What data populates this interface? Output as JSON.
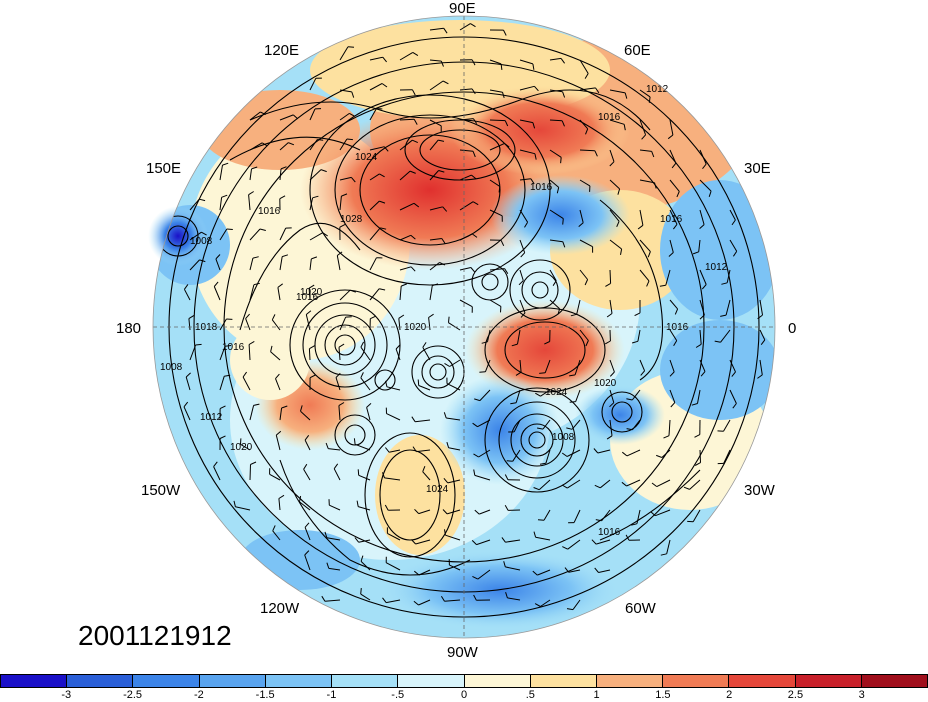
{
  "map": {
    "projection": "north polar stereographic",
    "fields": [
      "shaded anomaly",
      "sea-level pressure contours",
      "wind barbs"
    ],
    "longitude_labels": {
      "top": "90E",
      "upper_left": "120E",
      "upper_right": "60E",
      "left_upper": "150E",
      "right_upper": "30E",
      "left": "180",
      "right": "0",
      "left_lower": "150W",
      "right_lower": "30W",
      "lower_left": "120W",
      "lower_right": "60W",
      "bottom": "90W"
    },
    "contour_labels": [
      "1012",
      "1016",
      "1008",
      "1016",
      "1016",
      "1028",
      "1024",
      "1016",
      "1020",
      "1020",
      "1018",
      "1016",
      "1008",
      "1012",
      "1020",
      "1024",
      "1020",
      "1024",
      "1008",
      "1016",
      "1016",
      "1012",
      "1016"
    ]
  },
  "timestamp": "2001121912",
  "colorbar": {
    "colors": [
      "#1a10c8",
      "#2a5fd8",
      "#3c84e8",
      "#59a4ef",
      "#7cc3f5",
      "#a5e0f7",
      "#d8f4fb",
      "#fdf6d6",
      "#fde1a0",
      "#f7b07e",
      "#f07b55",
      "#e5473a",
      "#c8202a",
      "#a00f1c"
    ],
    "tick_labels": [
      "-3",
      "-2.5",
      "-2",
      "-1.5",
      "-1",
      "-.5",
      "0",
      ".5",
      "1",
      "1.5",
      "2",
      "2.5",
      "3"
    ]
  }
}
